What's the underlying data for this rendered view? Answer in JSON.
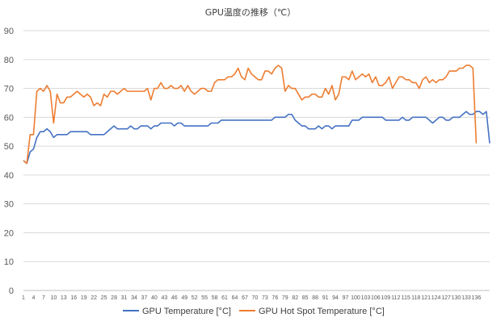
{
  "chart_data": {
    "type": "line",
    "title": "GPU温度の推移（℃）",
    "ylim": [
      0,
      90
    ],
    "yticks": [
      0,
      10,
      20,
      30,
      40,
      50,
      60,
      70,
      80,
      90
    ],
    "xticks": [
      1,
      4,
      7,
      10,
      13,
      16,
      19,
      22,
      25,
      28,
      31,
      34,
      37,
      40,
      43,
      46,
      49,
      52,
      55,
      58,
      61,
      64,
      67,
      70,
      73,
      76,
      79,
      82,
      85,
      88,
      91,
      94,
      97,
      100,
      103,
      106,
      109,
      112,
      115,
      118,
      121,
      124,
      127,
      130,
      133,
      136
    ],
    "grid": true,
    "legend_position": "bottom",
    "series": [
      {
        "name": "GPU Temperature [°C]",
        "color": "#4472C4",
        "values": [
          45,
          44,
          48,
          49,
          53,
          55,
          55,
          56,
          55,
          53,
          54,
          54,
          54,
          54,
          55,
          55,
          55,
          55,
          55,
          55,
          54,
          54,
          54,
          54,
          54,
          55,
          56,
          57,
          56,
          56,
          56,
          56,
          57,
          56,
          56,
          57,
          57,
          57,
          56,
          57,
          57,
          58,
          58,
          58,
          58,
          57,
          58,
          58,
          57,
          57,
          57,
          57,
          57,
          57,
          57,
          57,
          58,
          58,
          58,
          59,
          59,
          59,
          59,
          59,
          59,
          59,
          59,
          59,
          59,
          59,
          59,
          59,
          59,
          59,
          59,
          60,
          60,
          60,
          60,
          61,
          61,
          59,
          58,
          57,
          57,
          56,
          56,
          56,
          57,
          56,
          57,
          57,
          56,
          57,
          57,
          57,
          57,
          57,
          59,
          59,
          59,
          60,
          60,
          60,
          60,
          60,
          60,
          60,
          59,
          59,
          59,
          59,
          59,
          60,
          59,
          59,
          60,
          60,
          60,
          60,
          60,
          59,
          58,
          59,
          60,
          60,
          59,
          59,
          60,
          60,
          60,
          61,
          62,
          61,
          61,
          62,
          62,
          61,
          62,
          51
        ]
      },
      {
        "name": "GPU Hot Spot Temperature [°C]",
        "color": "#ED7D31",
        "values": [
          45,
          44,
          54,
          54,
          69,
          70,
          69,
          71,
          69,
          58,
          68,
          65,
          65,
          67,
          67,
          68,
          69,
          68,
          67,
          68,
          67,
          64,
          65,
          64,
          68,
          67,
          69,
          69,
          68,
          69,
          70,
          69,
          69,
          69,
          69,
          69,
          69,
          70,
          66,
          70,
          70,
          72,
          70,
          70,
          71,
          70,
          70,
          71,
          69,
          71,
          69,
          68,
          69,
          70,
          70,
          69,
          69,
          72,
          73,
          73,
          73,
          74,
          74,
          75,
          77,
          74,
          73,
          77,
          75,
          74,
          73,
          73,
          76,
          76,
          75,
          77,
          78,
          77,
          69,
          71,
          70,
          70,
          68,
          66,
          67,
          67,
          68,
          68,
          67,
          67,
          70,
          68,
          71,
          66,
          68,
          74,
          74,
          73,
          76,
          73,
          74,
          75,
          74,
          75,
          72,
          74,
          71,
          71,
          72,
          74,
          70,
          72,
          74,
          74,
          73,
          73,
          72,
          72,
          70,
          73,
          74,
          72,
          73,
          72,
          73,
          73,
          74,
          76,
          76,
          76,
          77,
          77,
          78,
          78,
          77,
          51
        ]
      }
    ]
  }
}
